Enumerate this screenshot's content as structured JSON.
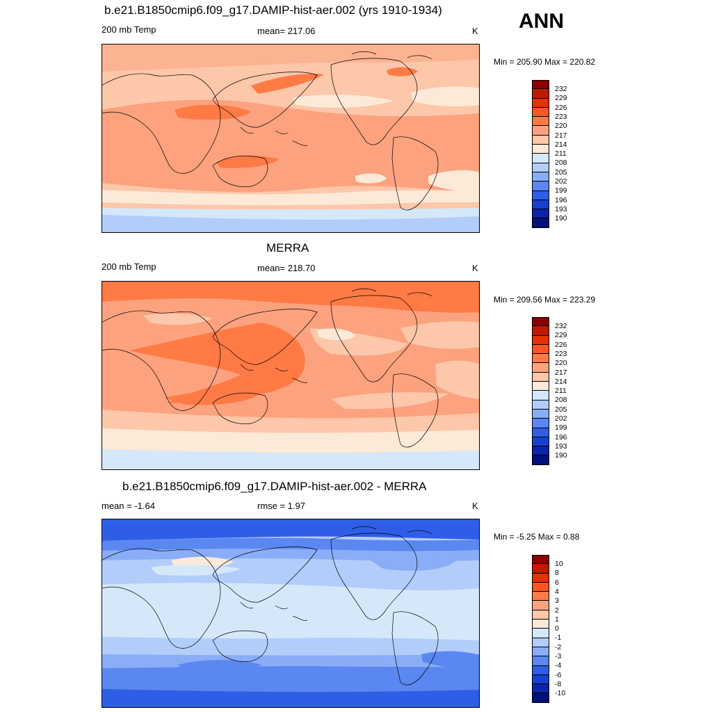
{
  "season": "ANN",
  "panels": [
    {
      "id": "model",
      "title": "b.e21.B1850cmip6.f09_g17.DAMIP-hist-aer.002 (yrs 1910-1934)",
      "left_label": "200 mb Temp",
      "center_label": "mean= 217.06",
      "units": "K",
      "minmax": "Min = 205.90 Max = 220.82",
      "colorbar_labels": [
        "232",
        "229",
        "226",
        "223",
        "220",
        "217",
        "214",
        "211",
        "208",
        "205",
        "202",
        "199",
        "196",
        "193",
        "190"
      ]
    },
    {
      "id": "obs",
      "title": "MERRA",
      "left_label": "200 mb Temp",
      "center_label": "mean= 218.70",
      "units": "K",
      "minmax": "Min = 209.56 Max = 223.29",
      "colorbar_labels": [
        "232",
        "229",
        "226",
        "223",
        "220",
        "217",
        "214",
        "211",
        "208",
        "205",
        "202",
        "199",
        "196",
        "193",
        "190"
      ]
    },
    {
      "id": "diff",
      "title": "b.e21.B1850cmip6.f09_g17.DAMIP-hist-aer.002 - MERRA",
      "left_label": "mean =  -1.64",
      "center_label": "rmse =   1.97",
      "units": "K",
      "minmax": "Min =  -5.25 Max =   0.88",
      "colorbar_labels": [
        "10",
        "8",
        "6",
        "4",
        "3",
        "2",
        "1",
        "0",
        "-1",
        "-2",
        "-3",
        "-4",
        "-6",
        "-8",
        "-10"
      ]
    }
  ],
  "colors": {
    "temp_scale": [
      "#8c0000",
      "#bf1a00",
      "#e63200",
      "#ff5522",
      "#ff7a45",
      "#fca27e",
      "#fdc7a9",
      "#fde9d8",
      "#d5e8fa",
      "#b3cdfa",
      "#8aadf7",
      "#5a87f0",
      "#2f5ee6",
      "#1640d0",
      "#0a24aa",
      "#00117a"
    ],
    "diff_scale": [
      "#8c0000",
      "#bf1a00",
      "#e63200",
      "#ff5522",
      "#ff7a45",
      "#fca27e",
      "#fdc7a9",
      "#fde9d8",
      "#d5e8fa",
      "#b3cdfa",
      "#8aadf7",
      "#5a87f0",
      "#2f5ee6",
      "#1640d0",
      "#0a24aa",
      "#00117a"
    ]
  }
}
